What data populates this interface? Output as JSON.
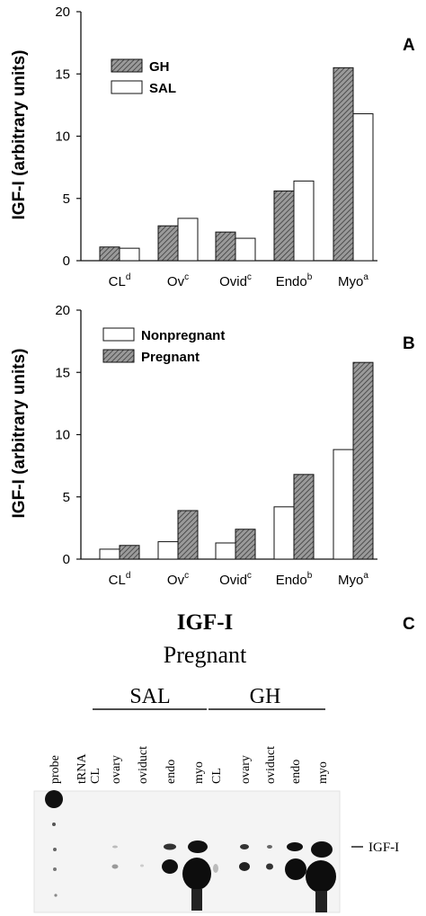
{
  "chart_data": [
    {
      "type": "bar",
      "panel": "A",
      "ylabel": "IGF-I (arbitrary units)",
      "ylim": [
        0,
        20
      ],
      "yticks": [
        "0",
        "5",
        "10",
        "15",
        "20"
      ],
      "categories": [
        {
          "name": "CL",
          "sup": "d"
        },
        {
          "name": "Ov",
          "sup": "c"
        },
        {
          "name": "Ovid",
          "sup": "c"
        },
        {
          "name": "Endo",
          "sup": "b"
        },
        {
          "name": "Myo",
          "sup": "a"
        }
      ],
      "series": [
        {
          "name": "GH",
          "fill": "hatched",
          "values": [
            1.1,
            2.8,
            2.3,
            5.6,
            15.5
          ]
        },
        {
          "name": "SAL",
          "fill": "white",
          "values": [
            1.0,
            3.4,
            1.8,
            6.4,
            11.8
          ]
        }
      ],
      "legend_position": "top-left"
    },
    {
      "type": "bar",
      "panel": "B",
      "ylabel": "IGF-I (arbitrary units)",
      "ylim": [
        0,
        20
      ],
      "yticks": [
        "0",
        "5",
        "10",
        "15",
        "20"
      ],
      "categories": [
        {
          "name": "CL",
          "sup": "d"
        },
        {
          "name": "Ov",
          "sup": "c"
        },
        {
          "name": "Ovid",
          "sup": "c"
        },
        {
          "name": "Endo",
          "sup": "b"
        },
        {
          "name": "Myo",
          "sup": "a"
        }
      ],
      "series": [
        {
          "name": "Nonpregnant",
          "fill": "white",
          "values": [
            0.8,
            1.4,
            1.3,
            4.2,
            8.8
          ]
        },
        {
          "name": "Pregnant",
          "fill": "hatched",
          "values": [
            1.1,
            3.9,
            2.4,
            6.8,
            15.8
          ]
        }
      ],
      "legend_position": "top-left"
    }
  ],
  "blot": {
    "panel": "C",
    "title": "IGF-I",
    "subtitle": "Pregnant",
    "groups": [
      "SAL",
      "GH"
    ],
    "lanes": [
      "probe",
      "tRNA",
      "CL",
      "ovary",
      "oviduct",
      "endo",
      "myo",
      "CL",
      "ovary",
      "oviduct",
      "endo",
      "myo"
    ],
    "band_label": "IGF-I"
  },
  "colors": {
    "ink": "#111111",
    "hatch": "#555555",
    "blot_bg": "#f4f4f4"
  }
}
